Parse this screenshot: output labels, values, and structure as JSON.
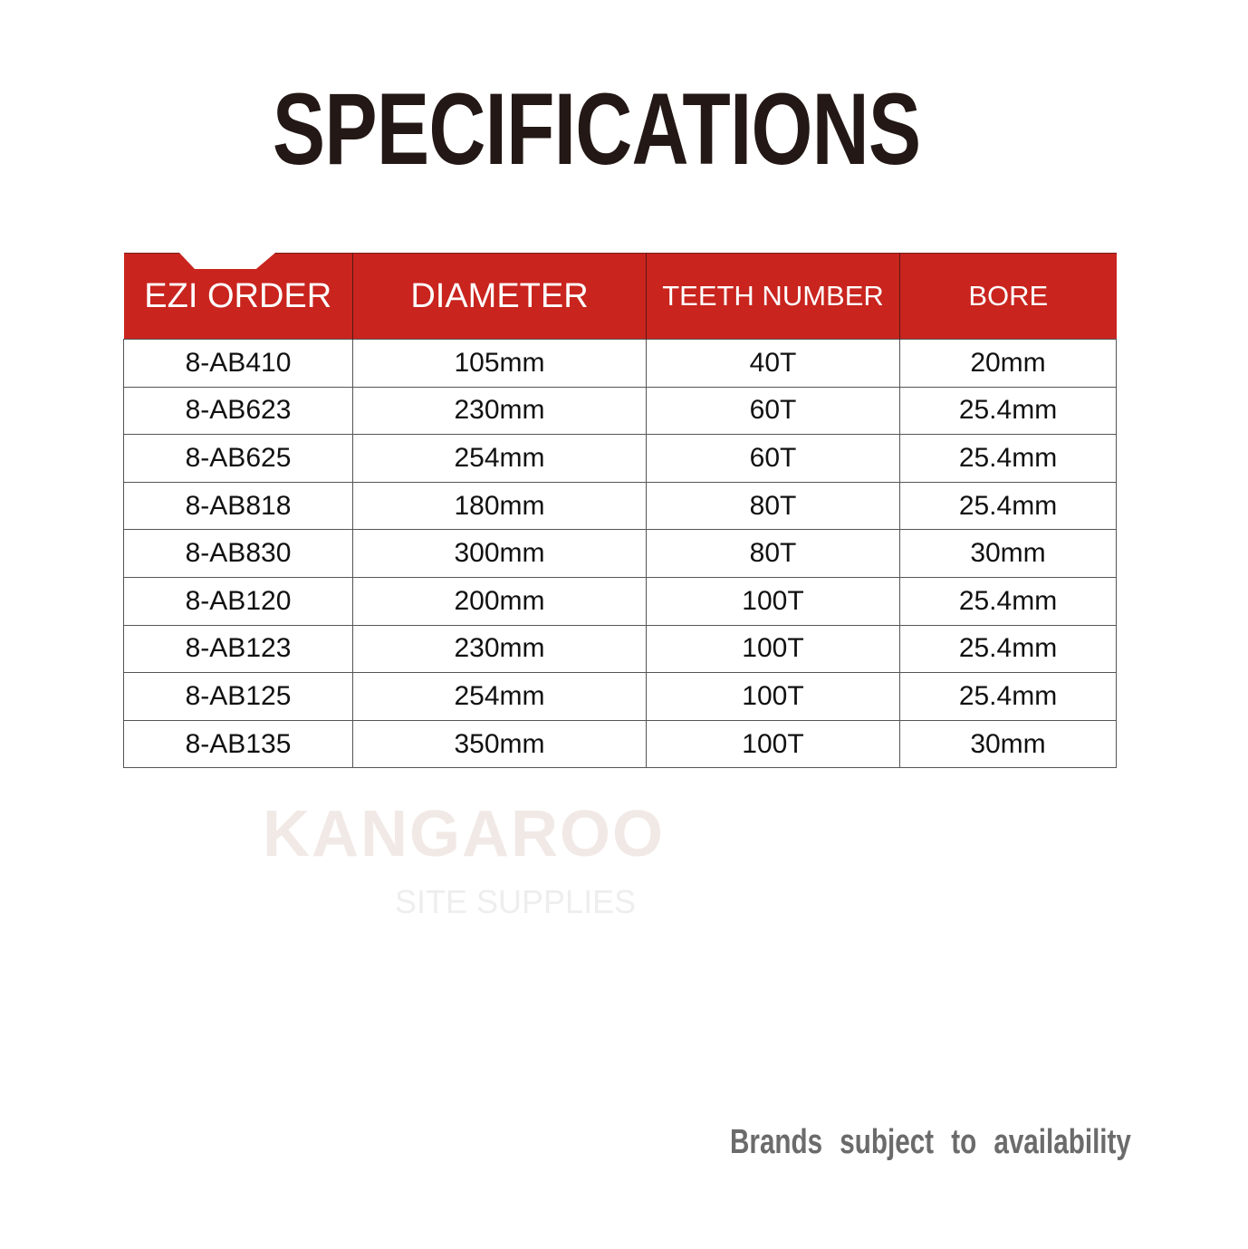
{
  "title": "SPECIFICATIONS",
  "watermark": {
    "line1": "KANGAROO",
    "line2": "SITE SUPPLIES"
  },
  "colors": {
    "header_bg": "#c9241e",
    "title": "#231815",
    "note": "#6b6b6b"
  },
  "table": {
    "headers": [
      "EZI ORDER",
      "DIAMETER",
      "TEETH NUMBER",
      "BORE"
    ],
    "rows": [
      [
        "8-AB410",
        "105mm",
        "40T",
        "20mm"
      ],
      [
        "8-AB623",
        "230mm",
        "60T",
        "25.4mm"
      ],
      [
        "8-AB625",
        "254mm",
        "60T",
        "25.4mm"
      ],
      [
        "8-AB818",
        "180mm",
        "80T",
        "25.4mm"
      ],
      [
        "8-AB830",
        "300mm",
        "80T",
        "30mm"
      ],
      [
        "8-AB120",
        "200mm",
        "100T",
        "25.4mm"
      ],
      [
        "8-AB123",
        "230mm",
        "100T",
        "25.4mm"
      ],
      [
        "8-AB125",
        "254mm",
        "100T",
        "25.4mm"
      ],
      [
        "8-AB135",
        "350mm",
        "100T",
        "30mm"
      ]
    ]
  },
  "footer_note": "Brands subject to availability"
}
